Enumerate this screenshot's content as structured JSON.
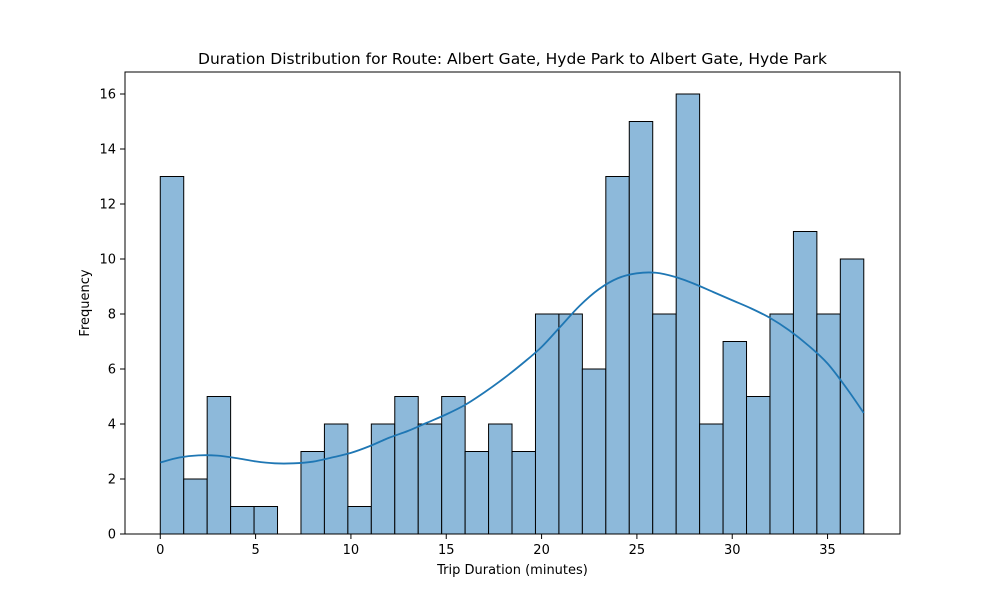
{
  "chart_data": {
    "type": "bar",
    "title": "Duration Distribution for Route: Albert Gate, Hyde Park to Albert Gate, Hyde Park",
    "xlabel": "Trip Duration (minutes)",
    "ylabel": "Frequency",
    "xlim": [
      -1.85,
      38.8
    ],
    "ylim": [
      0,
      16.8
    ],
    "xticks": [
      0,
      5,
      10,
      15,
      20,
      25,
      30,
      35
    ],
    "yticks": [
      0,
      2,
      4,
      6,
      8,
      10,
      12,
      14,
      16
    ],
    "bin_start": 0,
    "bin_width": 1.23,
    "values": [
      13,
      2,
      5,
      1,
      1,
      0,
      3,
      4,
      1,
      4,
      5,
      4,
      5,
      3,
      4,
      3,
      8,
      8,
      6,
      13,
      15,
      8,
      16,
      4,
      7,
      5,
      8,
      11,
      8,
      10
    ],
    "bar_color": "#8db9da",
    "edge_color": "#000000",
    "kde": {
      "color": "#1f77b4",
      "x": [
        0,
        1,
        2,
        3,
        4,
        5,
        6,
        7,
        8,
        9,
        10,
        11,
        12,
        13,
        14,
        15,
        16,
        17,
        18,
        19,
        20,
        21,
        22,
        23,
        24,
        25,
        26,
        27,
        28,
        29,
        30,
        31,
        32,
        33,
        34,
        35,
        36,
        36.9
      ],
      "y": [
        2.6,
        2.78,
        2.86,
        2.85,
        2.76,
        2.64,
        2.57,
        2.57,
        2.63,
        2.78,
        2.95,
        3.2,
        3.5,
        3.75,
        4.05,
        4.35,
        4.7,
        5.15,
        5.65,
        6.2,
        6.8,
        7.55,
        8.3,
        8.9,
        9.3,
        9.48,
        9.5,
        9.35,
        9.1,
        8.8,
        8.5,
        8.2,
        7.85,
        7.4,
        6.85,
        6.2,
        5.3,
        4.4
      ]
    }
  }
}
